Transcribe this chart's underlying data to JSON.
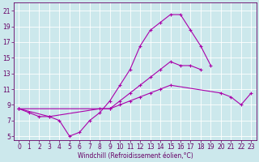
{
  "xlabel": "Windchill (Refroidissement éolien,°C)",
  "bg_color": "#cce8ec",
  "line_color": "#aa00aa",
  "grid_color": "#ffffff",
  "xlim": [
    -0.5,
    23.5
  ],
  "ylim": [
    4.5,
    22.0
  ],
  "xticks": [
    0,
    1,
    2,
    3,
    4,
    5,
    6,
    7,
    8,
    9,
    10,
    11,
    12,
    13,
    14,
    15,
    16,
    17,
    18,
    19,
    20,
    21,
    22,
    23
  ],
  "yticks": [
    5,
    7,
    9,
    11,
    13,
    15,
    17,
    19,
    21
  ],
  "curve1_x": [
    0,
    1,
    2,
    3,
    4,
    5,
    6,
    7,
    8,
    9,
    10,
    11,
    12,
    13,
    14,
    15,
    16,
    17,
    18,
    19
  ],
  "curve1_y": [
    8.5,
    8.0,
    7.5,
    7.5,
    7.0,
    5.0,
    5.5,
    7.0,
    8.0,
    9.5,
    11.5,
    13.5,
    16.5,
    18.5,
    19.5,
    20.5,
    20.5,
    18.5,
    16.5,
    14.0
  ],
  "curve2_x": [
    0,
    9,
    10,
    11,
    12,
    13,
    14,
    15,
    16,
    17,
    18
  ],
  "curve2_y": [
    8.5,
    8.5,
    9.5,
    10.5,
    11.5,
    12.5,
    13.5,
    14.5,
    14.0,
    14.0,
    13.5
  ],
  "curve3_x": [
    0,
    3,
    8,
    9,
    10,
    11,
    12,
    13,
    14,
    15,
    20,
    21,
    22,
    23
  ],
  "curve3_y": [
    8.5,
    7.5,
    8.5,
    8.5,
    9.0,
    9.5,
    10.0,
    10.5,
    11.0,
    11.5,
    10.5,
    10.0,
    9.0,
    10.5
  ],
  "tick_fontsize": 5.5,
  "xlabel_fontsize": 5.5,
  "tick_color": "#660066",
  "spine_color": "#660066"
}
